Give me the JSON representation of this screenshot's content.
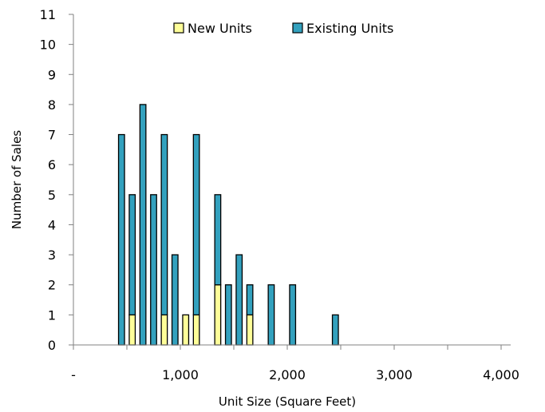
{
  "chart_data": {
    "type": "bar",
    "stacked": true,
    "xlabel": "Unit Size (Square Feet)",
    "ylabel": "Number of Sales",
    "xlim": [
      0,
      4000
    ],
    "ylim": [
      0,
      11
    ],
    "x_ticks": [
      0,
      1000,
      2000,
      3000,
      4000
    ],
    "x_tick_labels": [
      "-",
      "1,000",
      "2,000",
      "3,000",
      "4,000"
    ],
    "y_ticks": [
      0,
      1,
      2,
      3,
      4,
      5,
      6,
      7,
      8,
      9,
      10,
      11
    ],
    "y_tick_labels": [
      "0",
      "1",
      "2",
      "3",
      "4",
      "5",
      "6",
      "7",
      "8",
      "9",
      "10",
      "11"
    ],
    "bin_width": 100,
    "grid": false,
    "legend_position": "top-center",
    "x": [
      450,
      550,
      650,
      750,
      850,
      950,
      1050,
      1150,
      1350,
      1450,
      1550,
      1650,
      1850,
      2050,
      2450
    ],
    "series": [
      {
        "name": "New Units",
        "color": "#ffff99",
        "values": [
          0,
          1,
          0,
          0,
          1,
          0,
          1,
          1,
          2,
          0,
          0,
          1,
          0,
          0,
          0
        ]
      },
      {
        "name": "Existing Units",
        "color": "#33a1be",
        "values": [
          7,
          4,
          8,
          5,
          6,
          3,
          0,
          6,
          3,
          2,
          3,
          1,
          2,
          2,
          1
        ]
      }
    ]
  }
}
